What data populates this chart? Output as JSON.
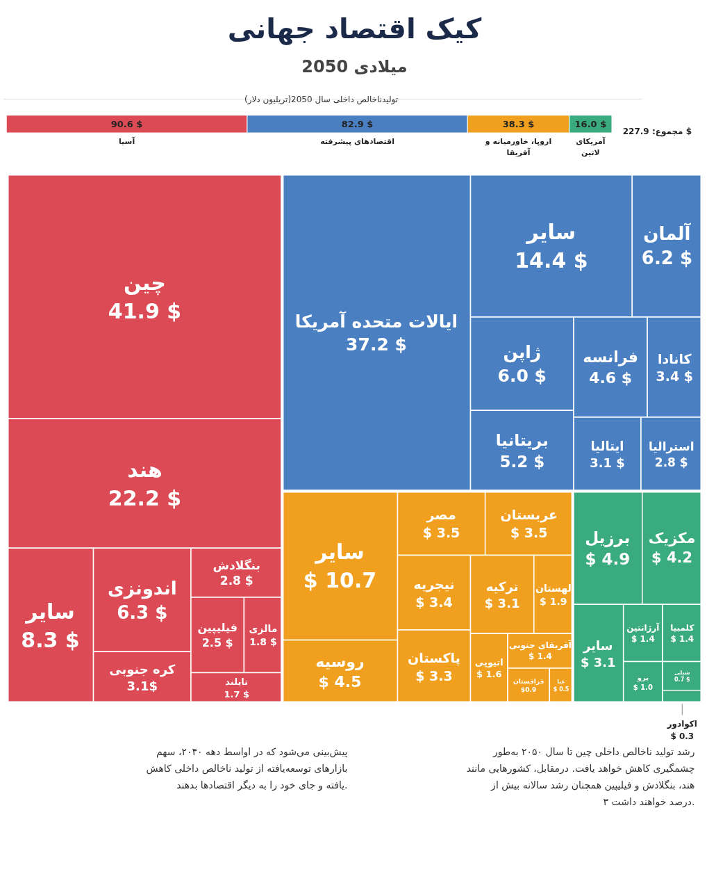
{
  "chart_data": [
    {
      "type": "other",
      "title": "کیک اقتصاد جهانی",
      "subtitle": "2050 میلادی"
    },
    {
      "type": "bar",
      "orientation": "horizontal",
      "stacked": true,
      "tick_labels": false,
      "title": "تولیدناخالص داخلی سال 2050(تریلیون دلار)",
      "categories": [
        null
      ],
      "series": [
        {
          "name": "آسیا",
          "color": "#dc4b55",
          "values": [
            90.6
          ],
          "value_labels": [
            "90.6 $"
          ]
        },
        {
          "name": "اقتصادهای پیشرفته",
          "color": "#4a7fc1",
          "values": [
            82.9
          ],
          "value_labels": [
            "82.9 $"
          ]
        },
        {
          "name": "اروپا، خاورمیانه و آفریقا",
          "color": "#f0a01e",
          "values": [
            38.3
          ],
          "value_labels": [
            "38.3 $"
          ]
        },
        {
          "name": "آمریکای لاتین",
          "color": "#3aaa7f",
          "values": [
            16.0
          ],
          "value_labels": [
            "16.0 $"
          ]
        }
      ],
      "annotations": [
        "مجموع: 227.9 $"
      ]
    },
    {
      "type": "other",
      "categories": [
        "چین",
        "هند",
        "سایر",
        "اندونزی",
        "کره جنوبی",
        "بنگلادش",
        "فیلیپین",
        "مالزی",
        "تایلند",
        "ایالات متحده آمریکا",
        "سایر",
        "آلمان",
        "ژاپن",
        "بریتانیا",
        "فرانسه",
        "کانادا",
        "ایتالیا",
        "استرالیا",
        "سایر",
        "روسیه",
        "مصر",
        "عربستان",
        "نیجریه",
        "پاکستان",
        "ترکیه",
        "لهستان",
        "اتیوپی",
        "آفریقای جنوبی",
        "قزاقستان",
        "غنا",
        "برزیل",
        "مکزیک",
        "سایر",
        "آرژانتین",
        "کلمبیا",
        "پرو",
        "شیلی",
        "اکوادور"
      ],
      "values": [
        41.9,
        22.2,
        8.3,
        6.3,
        3.1,
        2.8,
        2.5,
        1.8,
        1.7,
        37.2,
        14.4,
        6.2,
        6.0,
        5.2,
        4.6,
        3.4,
        3.1,
        2.8,
        10.7,
        4.5,
        3.5,
        3.5,
        3.4,
        3.3,
        3.1,
        1.9,
        1.6,
        1.4,
        0.9,
        0.5,
        4.9,
        4.2,
        3.1,
        1.4,
        1.4,
        1.0,
        0.7,
        0.3
      ],
      "value_labels": [
        "41.9 $",
        "22.2 $",
        "8.3 $",
        "6.3 $",
        "3.1$",
        "2.8 $",
        "2.5 $",
        "1.8 $",
        "1.7 $",
        "37.2 $",
        "14.4 $",
        "6.2 $",
        "6.0 $",
        "5.2 $",
        "4.6 $",
        "3.4 $",
        "3.1 $",
        "2.8 $",
        "$ 10.7",
        "$ 4.5",
        "$ 3.5",
        "$ 3.5",
        "$ 3.4",
        "$ 3.3",
        "$ 3.1",
        "$ 1.9",
        "$ 1.6",
        "$ 1.4",
        "$0.9",
        "$ 0.5",
        "$ 4.9",
        "$ 4.2",
        "$ 3.1",
        "$ 1.4",
        "$ 1.4",
        "$ 1.0",
        "0.7 $",
        "$ 0.3"
      ],
      "colors": [
        "#dc4b55",
        "#dc4b55",
        "#dc4b55",
        "#dc4b55",
        "#dc4b55",
        "#dc4b55",
        "#dc4b55",
        "#dc4b55",
        "#dc4b55",
        "#4a7fc1",
        "#4a7fc1",
        "#4a7fc1",
        "#4a7fc1",
        "#4a7fc1",
        "#4a7fc1",
        "#4a7fc1",
        "#4a7fc1",
        "#4a7fc1",
        "#f0a01e",
        "#f0a01e",
        "#f0a01e",
        "#f0a01e",
        "#f0a01e",
        "#f0a01e",
        "#f0a01e",
        "#f0a01e",
        "#f0a01e",
        "#f0a01e",
        "#f0a01e",
        "#f0a01e",
        "#3aaa7f",
        "#3aaa7f",
        "#3aaa7f",
        "#3aaa7f",
        "#3aaa7f",
        "#3aaa7f",
        "#3aaa7f",
        "#3aaa7f"
      ],
      "annotations": [
        "پیش‌بینی می‌شود که در اواسط دهه ۲۰۴۰، سهم بازارهای توسعه‌یافته از تولید ناخالص داخلی  کاهش یافته و جای خود را به دیگر اقتصادها بدهند.",
        "رشد تولید ناخالص داخلی چین تا سال ۲۰۵۰ به‌طور چشمگیری کاهش خواهد یافت. درمقابل، کشورهایی مانند هند، بنگلادش و فیلیپین همچنان رشد سالانه بیش از ۳ درصد خواهند داشت."
      ]
    }
  ]
}
